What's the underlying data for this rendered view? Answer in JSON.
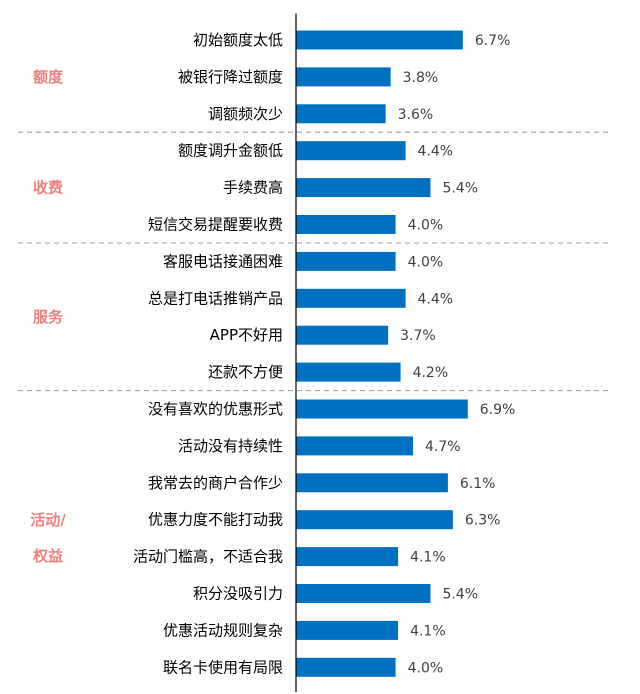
{
  "chart_data": {
    "type": "bar",
    "orientation": "horizontal",
    "bar_color": "#0070C0",
    "group_label_color": "#F08080",
    "axis_color": "#000000",
    "separator_color": "#A6A6A6",
    "title": "",
    "xlabel": "",
    "ylabel": "",
    "xlim": [
      0,
      8
    ],
    "value_suffix": "%",
    "groups": [
      {
        "label": "额度",
        "categories": [
          "初始额度太低",
          "被银行降过额度",
          "调额频次少"
        ],
        "values": [
          6.7,
          3.8,
          3.6
        ]
      },
      {
        "label": "收费",
        "categories": [
          "额度调升金额低",
          "手续费高",
          "短信交易提醒要收费"
        ],
        "values": [
          4.4,
          5.4,
          4.0
        ]
      },
      {
        "label": "服务",
        "categories": [
          "客服电话接通困难",
          "总是打电话推销产品",
          "APP不好用",
          "还款不方便"
        ],
        "values": [
          4.0,
          4.4,
          3.7,
          4.2
        ]
      },
      {
        "label": "活动/\n权益",
        "categories": [
          "没有喜欢的优惠形式",
          "活动没有持续性",
          "我常去的商户合作少",
          "优惠力度不能打动我",
          "活动门槛高，不适合我",
          "积分没吸引力",
          "优惠活动规则复杂",
          "联名卡使用有局限"
        ],
        "values": [
          6.9,
          4.7,
          6.1,
          6.3,
          4.1,
          5.4,
          4.1,
          4.0
        ]
      }
    ]
  }
}
